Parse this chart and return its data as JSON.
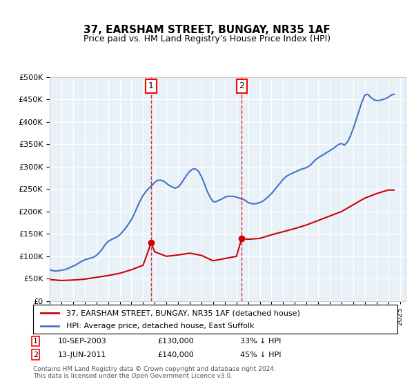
{
  "title": "37, EARSHAM STREET, BUNGAY, NR35 1AF",
  "subtitle": "Price paid vs. HM Land Registry's House Price Index (HPI)",
  "ylabel": "",
  "xlabel": "",
  "ylim": [
    0,
    500000
  ],
  "yticks": [
    0,
    50000,
    100000,
    150000,
    200000,
    250000,
    300000,
    350000,
    400000,
    450000,
    500000
  ],
  "xlim_start": 1995.0,
  "xlim_end": 2025.5,
  "background_color": "#ffffff",
  "plot_bg_color": "#e8f0f8",
  "grid_color": "#ffffff",
  "marker1_x": 2003.69,
  "marker1_y": 130000,
  "marker1_label": "1",
  "marker1_date": "10-SEP-2003",
  "marker1_price": "£130,000",
  "marker1_pct": "33% ↓ HPI",
  "marker2_x": 2011.45,
  "marker2_y": 140000,
  "marker2_label": "2",
  "marker2_date": "13-JUN-2011",
  "marker2_price": "£140,000",
  "marker2_pct": "45% ↓ HPI",
  "red_line_color": "#cc0000",
  "blue_line_color": "#4472c4",
  "legend_label_red": "37, EARSHAM STREET, BUNGAY, NR35 1AF (detached house)",
  "legend_label_blue": "HPI: Average price, detached house, East Suffolk",
  "footnote": "Contains HM Land Registry data © Crown copyright and database right 2024.\nThis data is licensed under the Open Government Licence v3.0.",
  "hpi_years": [
    1995.0,
    1995.25,
    1995.5,
    1995.75,
    1996.0,
    1996.25,
    1996.5,
    1996.75,
    1997.0,
    1997.25,
    1997.5,
    1997.75,
    1998.0,
    1998.25,
    1998.5,
    1998.75,
    1999.0,
    1999.25,
    1999.5,
    1999.75,
    2000.0,
    2000.25,
    2000.5,
    2000.75,
    2001.0,
    2001.25,
    2001.5,
    2001.75,
    2002.0,
    2002.25,
    2002.5,
    2002.75,
    2003.0,
    2003.25,
    2003.5,
    2003.75,
    2004.0,
    2004.25,
    2004.5,
    2004.75,
    2005.0,
    2005.25,
    2005.5,
    2005.75,
    2006.0,
    2006.25,
    2006.5,
    2006.75,
    2007.0,
    2007.25,
    2007.5,
    2007.75,
    2008.0,
    2008.25,
    2008.5,
    2008.75,
    2009.0,
    2009.25,
    2009.5,
    2009.75,
    2010.0,
    2010.25,
    2010.5,
    2010.75,
    2011.0,
    2011.25,
    2011.5,
    2011.75,
    2012.0,
    2012.25,
    2012.5,
    2012.75,
    2013.0,
    2013.25,
    2013.5,
    2013.75,
    2014.0,
    2014.25,
    2014.5,
    2014.75,
    2015.0,
    2015.25,
    2015.5,
    2015.75,
    2016.0,
    2016.25,
    2016.5,
    2016.75,
    2017.0,
    2017.25,
    2017.5,
    2017.75,
    2018.0,
    2018.25,
    2018.5,
    2018.75,
    2019.0,
    2019.25,
    2019.5,
    2019.75,
    2020.0,
    2020.25,
    2020.5,
    2020.75,
    2021.0,
    2021.25,
    2021.5,
    2021.75,
    2022.0,
    2022.25,
    2022.5,
    2022.75,
    2023.0,
    2023.25,
    2023.5,
    2023.75,
    2024.0,
    2024.25,
    2024.5
  ],
  "hpi_values": [
    70000,
    68000,
    67000,
    67500,
    69000,
    70000,
    72000,
    75000,
    78000,
    81000,
    85000,
    89000,
    92000,
    94000,
    96000,
    98000,
    102000,
    108000,
    116000,
    126000,
    133000,
    137000,
    140000,
    143000,
    148000,
    155000,
    163000,
    172000,
    182000,
    195000,
    210000,
    224000,
    236000,
    245000,
    252000,
    258000,
    265000,
    270000,
    270000,
    268000,
    263000,
    258000,
    255000,
    252000,
    255000,
    262000,
    272000,
    282000,
    290000,
    295000,
    295000,
    290000,
    278000,
    262000,
    245000,
    232000,
    222000,
    222000,
    225000,
    228000,
    232000,
    234000,
    234000,
    234000,
    232000,
    230000,
    228000,
    225000,
    220000,
    218000,
    217000,
    218000,
    220000,
    223000,
    228000,
    234000,
    240000,
    248000,
    256000,
    264000,
    272000,
    278000,
    282000,
    285000,
    288000,
    291000,
    294000,
    296000,
    298000,
    302000,
    308000,
    315000,
    320000,
    324000,
    328000,
    332000,
    336000,
    340000,
    345000,
    350000,
    352000,
    348000,
    355000,
    368000,
    385000,
    405000,
    425000,
    445000,
    460000,
    462000,
    455000,
    450000,
    448000,
    448000,
    450000,
    452000,
    455000,
    460000,
    462000
  ],
  "red_years": [
    1995.0,
    1996.0,
    1997.0,
    1998.0,
    1999.0,
    2000.0,
    2001.0,
    2002.0,
    2003.0,
    2003.69,
    2004.0,
    2005.0,
    2006.0,
    2007.0,
    2008.0,
    2009.0,
    2010.0,
    2011.0,
    2011.45,
    2012.0,
    2013.0,
    2014.0,
    2015.0,
    2016.0,
    2017.0,
    2018.0,
    2019.0,
    2020.0,
    2021.0,
    2022.0,
    2023.0,
    2024.0,
    2024.5
  ],
  "red_values": [
    48000,
    46000,
    47000,
    49000,
    53000,
    57000,
    62000,
    70000,
    80000,
    130000,
    110000,
    100000,
    103000,
    107000,
    102000,
    90000,
    95000,
    100000,
    140000,
    138000,
    140000,
    148000,
    155000,
    162000,
    170000,
    180000,
    190000,
    200000,
    215000,
    230000,
    240000,
    248000,
    248000
  ]
}
